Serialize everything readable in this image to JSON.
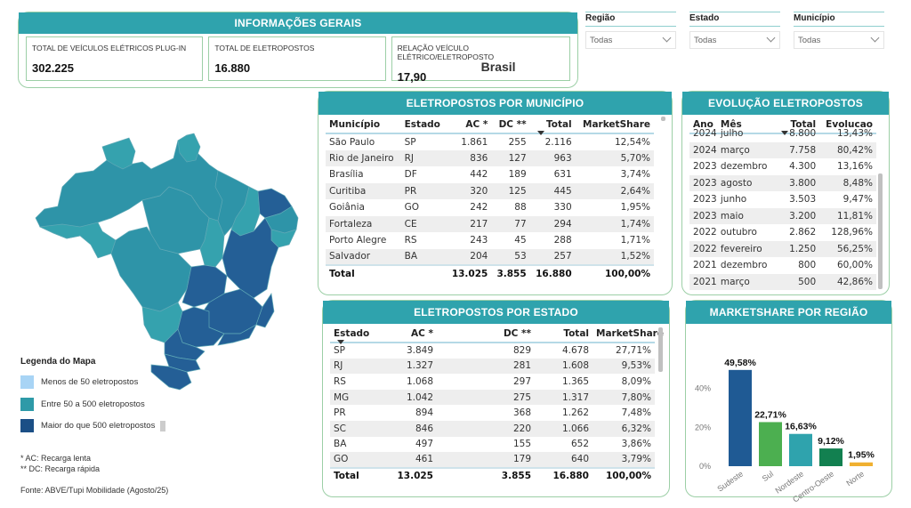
{
  "info": {
    "title": "INFORMAÇÕES GERAIS",
    "cards": [
      {
        "label": "TOTAL DE VEÍCULOS ELÉTRICOS PLUG-IN",
        "value": "302.225"
      },
      {
        "label": "TOTAL DE ELETROPOSTOS",
        "value": "16.880"
      },
      {
        "label": "RELAÇÃO VEÍCULO ELÉTRICO/ELETROPOSTO",
        "value": "17,90",
        "extra": "Brasil"
      }
    ]
  },
  "slicers": [
    {
      "title": "Região",
      "value": "Todas"
    },
    {
      "title": "Estado",
      "value": "Todas"
    },
    {
      "title": "Município",
      "value": "Todas"
    }
  ],
  "legend": {
    "title": "Legenda do Mapa",
    "items": [
      {
        "label": "Menos de 50 eletropostos",
        "color": "#a8d4f5"
      },
      {
        "label": "Entre 50 a 500 eletropostos",
        "color": "#2e9aa8"
      },
      {
        "label": "Maior do que 500 eletropostos",
        "color": "#1b4f86"
      }
    ],
    "notes": [
      "*  AC: Recarga lenta",
      "** DC: Recarga rápida"
    ],
    "source": "Fonte: ABVE/Tupi Mobilidade (Agosto/25)"
  },
  "map_colors": {
    "mid": "#2e94a8",
    "mid_light": "#35a2ae",
    "high": "#245f96"
  },
  "municipio": {
    "title": "ELETROPOSTOS POR MUNICÍPIO",
    "headers": [
      "Município",
      "Estado",
      "AC *",
      "DC **",
      "Total",
      "MarketShare"
    ],
    "rows": [
      [
        "São Paulo",
        "SP",
        "1.861",
        "255",
        "2.116",
        "12,54%"
      ],
      [
        "Rio de Janeiro",
        "RJ",
        "836",
        "127",
        "963",
        "5,70%"
      ],
      [
        "Brasília",
        "DF",
        "442",
        "189",
        "631",
        "3,74%"
      ],
      [
        "Curitiba",
        "PR",
        "320",
        "125",
        "445",
        "2,64%"
      ],
      [
        "Goiânia",
        "GO",
        "242",
        "88",
        "330",
        "1,95%"
      ],
      [
        "Fortaleza",
        "CE",
        "217",
        "77",
        "294",
        "1,74%"
      ],
      [
        "Porto Alegre",
        "RS",
        "243",
        "45",
        "288",
        "1,71%"
      ],
      [
        "Salvador",
        "BA",
        "204",
        "53",
        "257",
        "1,52%"
      ]
    ],
    "total": [
      "Total",
      "",
      "13.025",
      "3.855",
      "16.880",
      "100,00%"
    ]
  },
  "evolucao": {
    "title": "EVOLUÇÃO ELETROPOSTOS",
    "headers": [
      "Ano",
      "Mês",
      "Total",
      "Evolucao"
    ],
    "rows": [
      [
        "2024",
        "julho",
        "8.800",
        "13,43%"
      ],
      [
        "2024",
        "março",
        "7.758",
        "80,42%"
      ],
      [
        "2023",
        "dezembro",
        "4.300",
        "13,16%"
      ],
      [
        "2023",
        "agosto",
        "3.800",
        "8,48%"
      ],
      [
        "2023",
        "junho",
        "3.503",
        "9,47%"
      ],
      [
        "2023",
        "maio",
        "3.200",
        "11,81%"
      ],
      [
        "2022",
        "outubro",
        "2.862",
        "128,96%"
      ],
      [
        "2022",
        "fevereiro",
        "1.250",
        "56,25%"
      ],
      [
        "2021",
        "dezembro",
        "800",
        "60,00%"
      ],
      [
        "2021",
        "março",
        "500",
        "42,86%"
      ]
    ]
  },
  "estado": {
    "title": "ELETROPOSTOS POR ESTADO",
    "headers": [
      "Estado",
      "AC *",
      "DC **",
      "Total",
      "MarketShare"
    ],
    "rows": [
      [
        "SP",
        "3.849",
        "829",
        "4.678",
        "27,71%"
      ],
      [
        "RJ",
        "1.327",
        "281",
        "1.608",
        "9,53%"
      ],
      [
        "RS",
        "1.068",
        "297",
        "1.365",
        "8,09%"
      ],
      [
        "MG",
        "1.042",
        "275",
        "1.317",
        "7,80%"
      ],
      [
        "PR",
        "894",
        "368",
        "1.262",
        "7,48%"
      ],
      [
        "SC",
        "846",
        "220",
        "1.066",
        "6,32%"
      ],
      [
        "BA",
        "497",
        "155",
        "652",
        "3,86%"
      ],
      [
        "GO",
        "461",
        "179",
        "640",
        "3,79%"
      ]
    ],
    "total": [
      "Total",
      "13.025",
      "3.855",
      "16.880",
      "100,00%"
    ]
  },
  "regiao": {
    "title": "MARKETSHARE POR REGIÃO"
  },
  "chart_data": {
    "type": "bar",
    "title": "MARKETSHARE POR REGIÃO",
    "categories": [
      "Sudeste",
      "Sul",
      "Nordeste",
      "Centro-Oeste",
      "Norte"
    ],
    "values": [
      49.58,
      22.71,
      16.63,
      9.12,
      1.95
    ],
    "data_labels": [
      "49,58%",
      "22,71%",
      "16,63%",
      "9,12%",
      "1,95%"
    ],
    "colors": [
      "#1f5a94",
      "#4caf50",
      "#2fa3ad",
      "#128050",
      "#f0b030"
    ],
    "yticks": [
      "0%",
      "20%",
      "40%"
    ],
    "ytick_values": [
      0,
      20,
      40
    ],
    "ylim": [
      0,
      55
    ],
    "xlabel": "",
    "ylabel": "",
    "grid": false
  }
}
